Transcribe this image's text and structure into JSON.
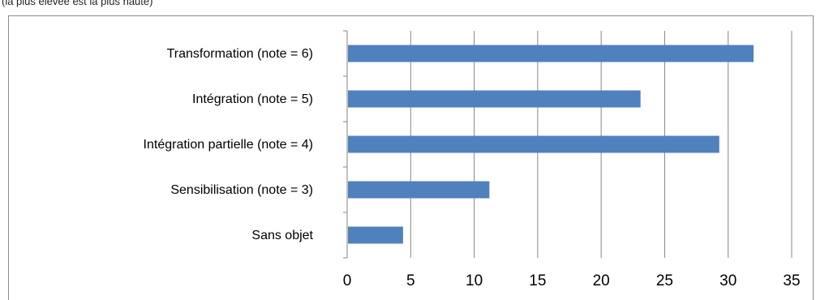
{
  "caption_fragment": "(la plus élevée est la plus haute)",
  "chart_data": {
    "type": "bar",
    "orientation": "horizontal",
    "categories": [
      "Transformation (note = 6)",
      "Intégration (note = 5)",
      "Intégration partielle (note = 4)",
      "Sensibilisation (note = 3)",
      "Sans objet"
    ],
    "values": [
      32,
      23.1,
      29.3,
      11.2,
      4.4
    ],
    "xlim": [
      0,
      35
    ],
    "xticks": [
      0,
      5,
      10,
      15,
      20,
      25,
      30,
      35
    ],
    "title": "",
    "xlabel": "",
    "ylabel": "",
    "grid": "vertical",
    "legend": "none",
    "bar_color": "#4f81bd",
    "grid_color": "#868686"
  }
}
